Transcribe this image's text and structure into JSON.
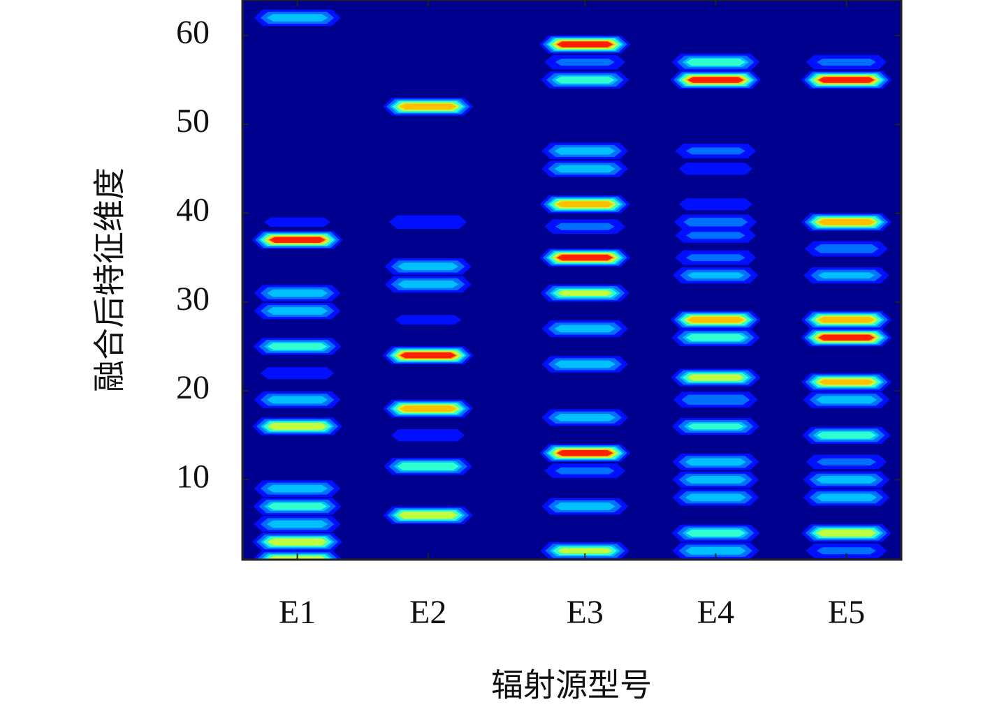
{
  "chart_data": {
    "type": "contour",
    "x_label": "辐射源型号",
    "y_label": "融合后特征维度",
    "xlim": [
      0.58,
      5.62
    ],
    "ylim": [
      1,
      64
    ],
    "xticks": [
      {
        "value": 1,
        "label": "E1"
      },
      {
        "value": 2,
        "label": "E2"
      },
      {
        "value": 3.2,
        "label": "E3"
      },
      {
        "value": 4.2,
        "label": "E4"
      },
      {
        "value": 5.2,
        "label": "E5"
      }
    ],
    "yticks": [
      10,
      20,
      30,
      40,
      50,
      60
    ],
    "background": "#00008f",
    "levels": [
      0.1,
      0.25,
      0.4,
      0.5,
      0.65,
      0.8,
      0.9
    ],
    "level_colors": [
      "#0010ff",
      "#0070ff",
      "#00c0ff",
      "#30ffd0",
      "#c0ff40",
      "#ffc000",
      "#ff2000"
    ],
    "series": [
      {
        "x": 1,
        "dims": [
          62,
          39,
          37,
          31,
          29,
          25,
          22,
          19,
          16,
          9,
          7,
          5,
          3,
          1
        ],
        "values": [
          0.5,
          0.15,
          1,
          0.5,
          0.5,
          0.6,
          0.2,
          0.5,
          0.8,
          0.5,
          0.6,
          0.5,
          0.8,
          0.8
        ]
      },
      {
        "x": 2,
        "dims": [
          52,
          39,
          34,
          32,
          28,
          24,
          18,
          15,
          11.5,
          6
        ],
        "values": [
          0.9,
          0.25,
          0.5,
          0.5,
          0.15,
          1,
          0.9,
          0.2,
          0.65,
          0.8
        ]
      },
      {
        "x": 3.2,
        "dims": [
          59,
          57,
          55,
          47,
          45,
          41,
          38.5,
          35,
          31,
          27,
          23,
          17,
          13,
          11,
          7,
          2
        ],
        "values": [
          1,
          0.3,
          0.6,
          0.5,
          0.5,
          0.9,
          0.3,
          1,
          0.7,
          0.5,
          0.5,
          0.5,
          1,
          0.3,
          0.5,
          0.7
        ]
      },
      {
        "x": 4.2,
        "dims": [
          57,
          55,
          47,
          45,
          41,
          39,
          37.5,
          35,
          33,
          28,
          26,
          21.5,
          19,
          16,
          12,
          10,
          8,
          4,
          2
        ],
        "values": [
          0.6,
          1,
          0.3,
          0.2,
          0.2,
          0.35,
          0.3,
          0.3,
          0.45,
          0.9,
          0.6,
          0.75,
          0.4,
          0.55,
          0.5,
          0.5,
          0.5,
          0.6,
          0.5
        ]
      },
      {
        "x": 5.2,
        "dims": [
          57,
          55,
          39,
          36,
          33,
          28,
          26,
          21,
          19,
          15,
          12,
          10,
          8,
          4,
          2
        ],
        "values": [
          0.3,
          1,
          0.9,
          0.35,
          0.45,
          0.9,
          1,
          0.85,
          0.5,
          0.6,
          0.3,
          0.5,
          0.5,
          0.8,
          0.3
        ]
      }
    ]
  }
}
